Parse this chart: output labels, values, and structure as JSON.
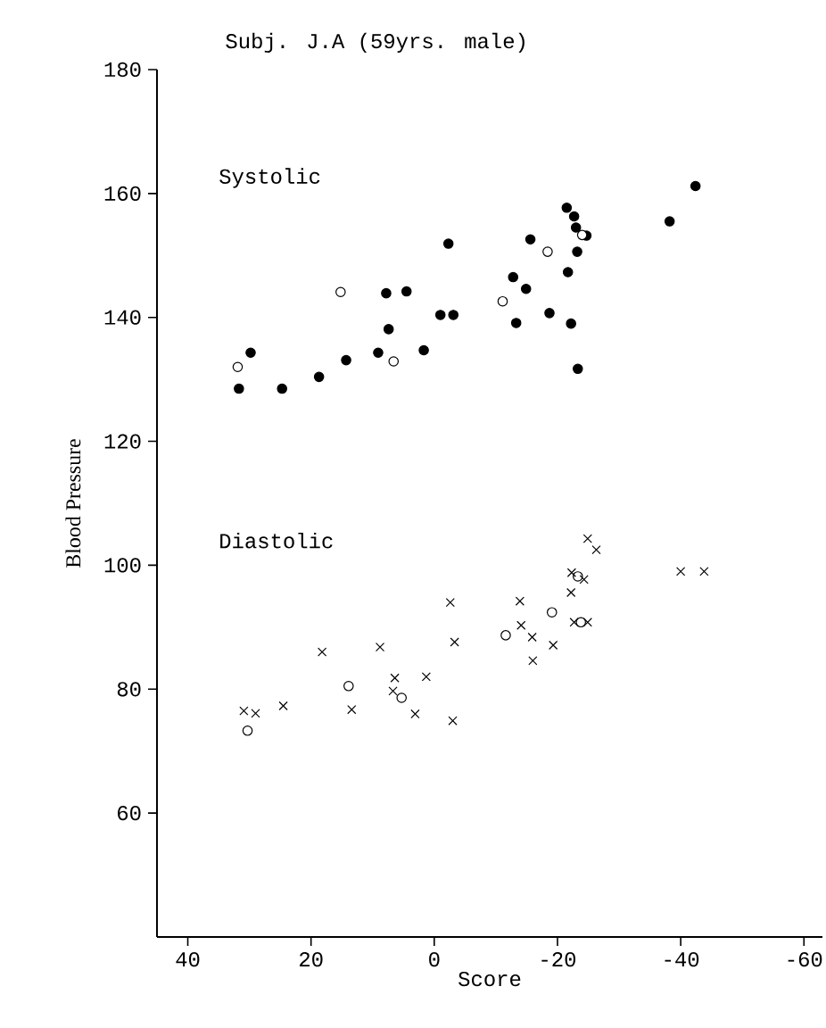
{
  "chart_data": {
    "type": "scatter",
    "title": "Subj. J.A (59yrs. male)",
    "xlabel": "Score",
    "ylabel": "Blood Pressure",
    "annotations": [
      "Systolic",
      "Diastolic"
    ],
    "xlim": [
      45,
      -63
    ],
    "ylim": [
      40,
      180
    ],
    "xticks": [
      40,
      20,
      0,
      -20,
      -40,
      -60
    ],
    "yticks": [
      60,
      80,
      100,
      120,
      140,
      160,
      180
    ],
    "grid": false,
    "series": [
      {
        "color": "#000000",
        "marker": "circle",
        "x": [
          31.7,
          29.8,
          24.7,
          18.7,
          14.3,
          9.1,
          7.4,
          7.8,
          4.5,
          1.7,
          -1.0,
          -3.1,
          -2.3,
          -12.8,
          -14.9,
          -13.3,
          -15.6,
          -18.7,
          -21.5,
          -22.7,
          -23.0,
          -24.7,
          -23.2,
          -21.7,
          -22.2,
          -23.3,
          -38.2,
          -42.4
        ],
        "values": [
          128.5,
          134.3,
          128.5,
          130.4,
          133.1,
          134.3,
          138.1,
          143.9,
          144.2,
          134.7,
          140.4,
          140.4,
          151.9,
          146.5,
          144.6,
          139.1,
          152.6,
          140.7,
          157.7,
          156.3,
          154.5,
          153.2,
          150.6,
          147.3,
          139.0,
          131.7,
          155.5,
          161.2
        ]
      },
      {
        "color": "#ffffff",
        "marker": "circle",
        "x": [
          31.9,
          15.2,
          6.6,
          -11.1,
          -18.4,
          -24.0,
          30.3,
          13.9,
          5.3,
          -11.6,
          -19.1,
          -23.3,
          -23.8
        ],
        "values": [
          132.0,
          144.1,
          132.9,
          142.6,
          150.6,
          153.3,
          73.3,
          80.5,
          78.6,
          88.7,
          92.4,
          98.2,
          90.8
        ]
      },
      {
        "color": "#000000",
        "marker": "cross",
        "x": [
          30.9,
          29.0,
          24.5,
          18.2,
          13.4,
          8.8,
          6.4,
          6.7,
          1.3,
          3.1,
          -2.6,
          -3.3,
          -3.0,
          -13.9,
          -14.1,
          -15.9,
          -16.0,
          -19.3,
          -22.2,
          -22.3,
          -24.3,
          -24.9,
          -26.3,
          -22.7,
          -24.9,
          -40.0,
          -43.8
        ],
        "values": [
          76.5,
          76.1,
          77.3,
          86.0,
          76.7,
          86.8,
          81.8,
          79.7,
          82.0,
          76.0,
          94.0,
          87.6,
          74.9,
          94.2,
          90.3,
          88.4,
          84.6,
          87.1,
          95.6,
          98.8,
          97.7,
          104.3,
          102.5,
          90.8,
          90.8,
          99.0,
          99.0
        ]
      }
    ]
  }
}
